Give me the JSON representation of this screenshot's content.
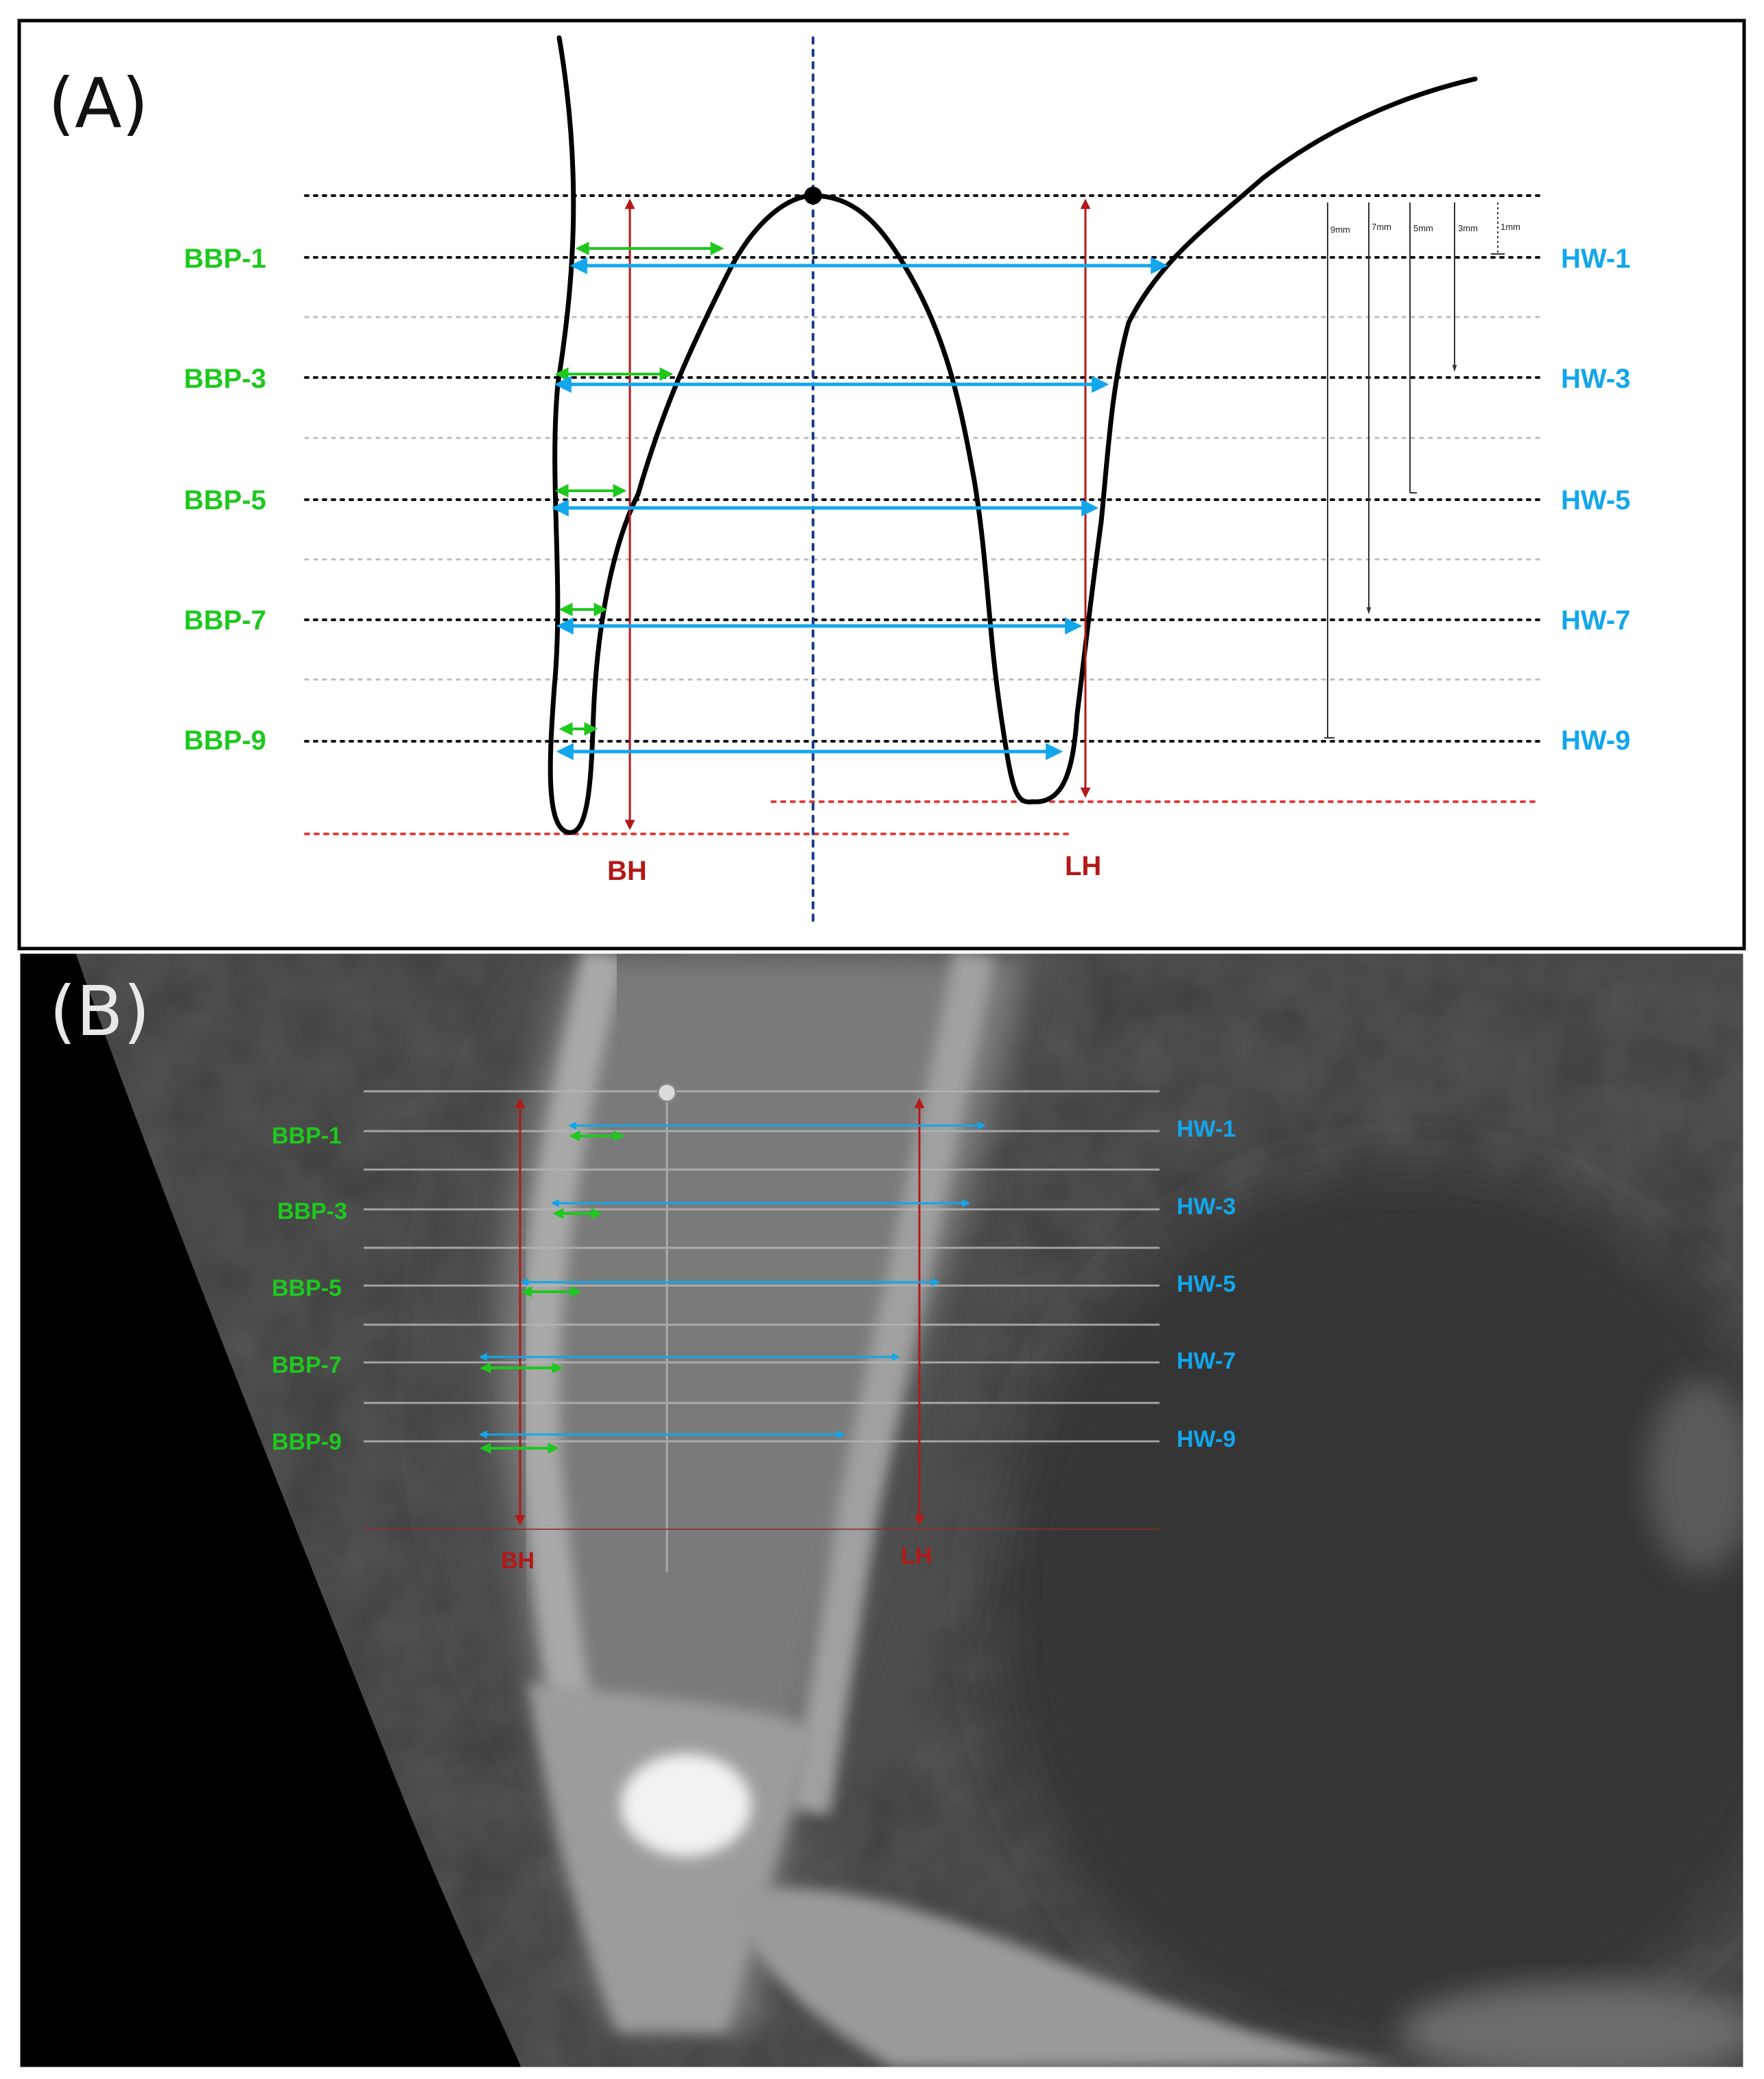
{
  "colors": {
    "green": "#1ec81e",
    "blue": "#12a6ec",
    "red": "#b41818",
    "dotted_red": "#e04040",
    "black": "#000000"
  },
  "panel_a": {
    "letter": "(A)",
    "bbp_labels": [
      "BBP-1",
      "BBP-3",
      "BBP-5",
      "BBP-7",
      "BBP-9"
    ],
    "hw_labels": [
      "HW-1",
      "HW-3",
      "HW-5",
      "HW-7",
      "HW-9"
    ],
    "bh_label": "BH",
    "lh_label": "LH",
    "scale_labels": [
      "9mm",
      "7mm",
      "5mm",
      "3mm",
      "1mm"
    ]
  },
  "panel_b": {
    "letter": "(B)",
    "bbp_labels": [
      "BBP-1",
      "BBP-3",
      "BBP-5",
      "BBP-7",
      "BBP-9"
    ],
    "hw_labels": [
      "HW-1",
      "HW-3",
      "HW-5",
      "HW-7",
      "HW-9"
    ],
    "bh_label": "BH",
    "lh_label": "LH"
  }
}
